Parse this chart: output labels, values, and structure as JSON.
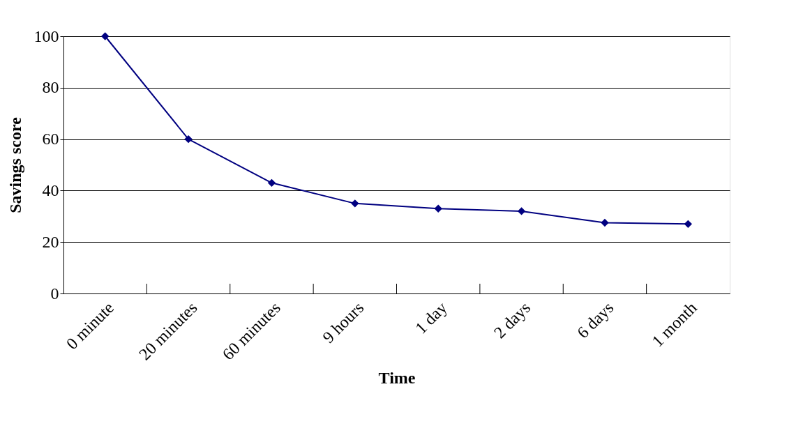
{
  "chart_data": {
    "type": "line",
    "xlabel": "Time",
    "ylabel": "Savings score",
    "categories": [
      "0 minute",
      "20 minutes",
      "60 minutes",
      "9 hours",
      "1 day",
      "2 days",
      "6 days",
      "1 month"
    ],
    "series": [
      {
        "color": "#000080",
        "values": [
          100,
          60,
          43,
          35,
          33,
          32,
          27.5,
          27
        ]
      }
    ],
    "ylim": [
      0,
      100
    ],
    "yticks": [
      0,
      20,
      40,
      60,
      80,
      100
    ],
    "grid": "y",
    "marker": "diamond",
    "line_style": "solid",
    "legend": false
  }
}
